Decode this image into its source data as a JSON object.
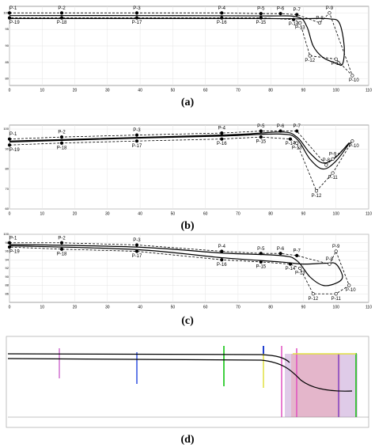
{
  "chart_data": [
    {
      "type": "line",
      "caption": "(a)",
      "xlim": [
        0,
        110
      ],
      "xticks": [
        0,
        10,
        20,
        30,
        40,
        50,
        60,
        70,
        80,
        90,
        100,
        110
      ],
      "ylim": [
        78,
        102
      ],
      "yticks": [
        80,
        85,
        90,
        95,
        100
      ],
      "grid": true,
      "points": {
        "labels": [
          "P-1",
          "P-2",
          "P-3",
          "P-4",
          "P-5",
          "P-6",
          "P-7",
          "P-8",
          "P-9",
          "P-10",
          "P-11",
          "P-12",
          "P-13",
          "P-14",
          "P-15",
          "P-16",
          "P-17",
          "P-18",
          "P-19"
        ],
        "x": [
          0,
          16,
          39,
          65,
          77,
          83,
          88,
          95,
          98,
          105,
          100,
          92,
          89,
          87,
          77,
          65,
          39,
          16,
          0
        ],
        "values": [
          100,
          100,
          100,
          100,
          99.8,
          99.8,
          99.5,
          97,
          100,
          81,
          86,
          87,
          97,
          98,
          98.5,
          98.5,
          98.5,
          98.5,
          98.5
        ],
        "color": "#000000"
      },
      "curve": {
        "x": [
          0,
          39,
          77,
          88,
          91,
          93,
          96,
          100,
          102,
          102.5,
          101,
          98,
          92,
          88,
          77,
          0
        ],
        "values": [
          99.2,
          99.2,
          99.1,
          98.8,
          96,
          90,
          86.5,
          84.8,
          84.5,
          90,
          97,
          98.2,
          98.3,
          98.2,
          98.3,
          98.3
        ],
        "color": "#000000"
      }
    },
    {
      "type": "line",
      "caption": "(b)",
      "xlim": [
        0,
        110
      ],
      "xticks": [
        0,
        10,
        20,
        30,
        40,
        50,
        60,
        70,
        80,
        90,
        100,
        110
      ],
      "ylim": [
        60,
        102
      ],
      "yticks": [
        60,
        70,
        80,
        90,
        100
      ],
      "grid": true,
      "points": {
        "labels": [
          "P-1",
          "P-2",
          "P-3",
          "P-4",
          "P-5",
          "P-6",
          "P-7",
          "P-8",
          "P-9",
          "P-10",
          "P-11",
          "P-12",
          "P-13",
          "P-14",
          "P-15",
          "P-16",
          "P-17",
          "P-18",
          "P-19"
        ],
        "x": [
          0,
          16,
          39,
          65,
          77,
          83,
          88,
          97,
          99,
          105,
          99,
          94,
          88,
          86,
          77,
          65,
          39,
          16,
          0
        ],
        "values": [
          95,
          96,
          97,
          98,
          99,
          99,
          99,
          82,
          85,
          94,
          78,
          69,
          93,
          95,
          96,
          95,
          94,
          93,
          92
        ],
        "color": "#000000"
      },
      "curve": {
        "x": [
          0,
          40,
          65,
          83,
          88,
          92,
          96,
          100,
          104,
          100,
          96,
          92,
          88,
          83,
          65,
          0
        ],
        "values": [
          93.5,
          95.5,
          96.5,
          97.5,
          95,
          85,
          80,
          84,
          93,
          86,
          83,
          88,
          96,
          98.5,
          97,
          94
        ],
        "color": "#000000"
      }
    },
    {
      "type": "line",
      "caption": "(c)",
      "xlim": [
        0,
        110
      ],
      "xticks": [
        0,
        10,
        20,
        30,
        40,
        50,
        60,
        70,
        80,
        90,
        100,
        110
      ],
      "ylim": [
        84,
        100
      ],
      "yticks": [
        86,
        88,
        90,
        92,
        94,
        96,
        98,
        100
      ],
      "grid": true,
      "points": {
        "labels": [
          "P-1",
          "P-2",
          "P-3",
          "P-4",
          "P-5",
          "P-6",
          "P-7",
          "P-8",
          "P-9",
          "P-10",
          "P-11",
          "P-12",
          "P-13",
          "P-14",
          "P-15",
          "P-16",
          "P-17",
          "P-18",
          "P-19"
        ],
        "x": [
          0,
          16,
          39,
          65,
          77,
          83,
          88,
          98,
          100,
          104,
          100,
          93,
          89,
          86,
          77,
          65,
          39,
          16,
          0
        ],
        "values": [
          98,
          98,
          97.5,
          96,
          95.5,
          95.5,
          95,
          93,
          96,
          88,
          86,
          86,
          92,
          93,
          93.5,
          94,
          96,
          96.5,
          97
        ],
        "color": "#000000"
      },
      "curve": {
        "x": [
          0,
          39,
          65,
          83,
          88,
          92,
          96,
          100,
          102,
          100,
          97,
          90,
          83,
          65,
          39,
          0
        ],
        "values": [
          97.6,
          97,
          95.6,
          95,
          93.8,
          90,
          88,
          88.5,
          90,
          93,
          93.2,
          93,
          93.5,
          94.5,
          96.4,
          97.3
        ],
        "color": "#000000"
      }
    },
    {
      "type": "image",
      "caption": "(d)"
    }
  ]
}
